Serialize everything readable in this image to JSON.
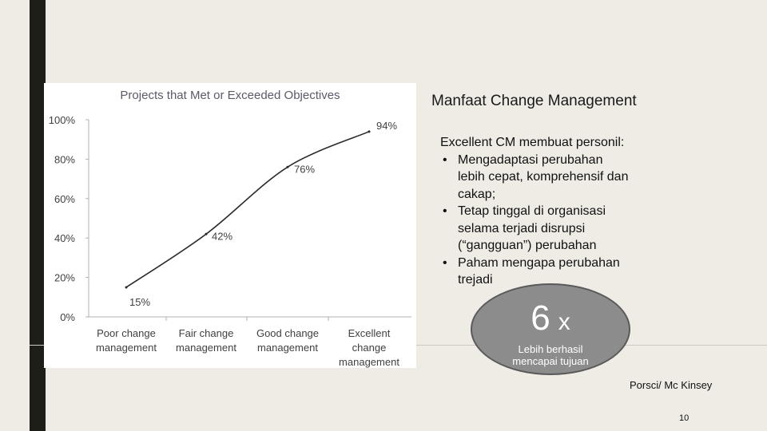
{
  "chart_data": {
    "type": "line",
    "title": "Projects that Met or Exceeded Objectives",
    "categories": [
      "Poor change management",
      "Fair change management",
      "Good change management",
      "Excellent change management"
    ],
    "category_lines": [
      [
        "Poor change",
        "management"
      ],
      [
        "Fair change",
        "management"
      ],
      [
        "Good change",
        "management"
      ],
      [
        "Excellent",
        "change",
        "management"
      ]
    ],
    "values": [
      15,
      42,
      76,
      94
    ],
    "data_labels": [
      "15%",
      "42%",
      "76%",
      "94%"
    ],
    "ylim": [
      0,
      100
    ],
    "yticks": [
      "0%",
      "20%",
      "40%",
      "60%",
      "80%",
      "100%"
    ],
    "ytick_values": [
      0,
      20,
      40,
      60,
      80,
      100
    ],
    "grid": false,
    "colors": {
      "line": "#2a2a2a",
      "text": "#404040",
      "title": "#5a5a6a",
      "axis": "#b0b0b0"
    }
  },
  "slide": {
    "title": "Manfaat Change Management",
    "intro": "Excellent CM membuat personil:",
    "bullets": [
      [
        "Mengadaptasi perubahan",
        "lebih cepat, komprehensif dan",
        "cakap;"
      ],
      [
        "Tetap tinggal di organisasi",
        "selama terjadi disrupsi",
        "(“gangguan”) perubahan"
      ],
      [
        "Paham mengapa perubahan",
        "trejadi"
      ]
    ],
    "bullet_glyph": "•",
    "stat_value": "6",
    "stat_unit": "x",
    "stat_caption_lines": [
      "Lebih berhasil",
      "mencapai tujuan"
    ],
    "source": "Porsci/ Mc Kinsey",
    "page_number": "10"
  }
}
